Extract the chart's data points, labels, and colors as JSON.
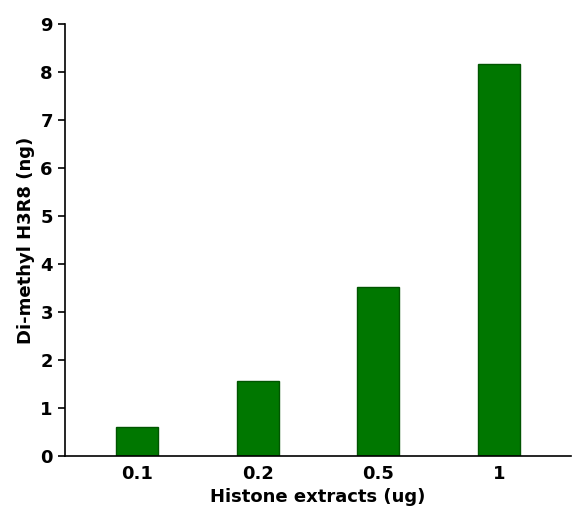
{
  "categories": [
    "0.1",
    "0.2",
    "0.5",
    "1"
  ],
  "values": [
    0.62,
    1.57,
    3.52,
    8.17
  ],
  "bar_color": "#007700",
  "bar_edge_color": "#005500",
  "xlabel": "Histone extracts (ug)",
  "ylabel": "Di-methyl H3R8 (ng)",
  "ylim": [
    0,
    9
  ],
  "yticks": [
    0,
    1,
    2,
    3,
    4,
    5,
    6,
    7,
    8,
    9
  ],
  "xlabel_fontsize": 13,
  "ylabel_fontsize": 13,
  "tick_fontsize": 13,
  "bar_width": 0.35,
  "figure_width": 5.88,
  "figure_height": 5.23,
  "dpi": 100
}
